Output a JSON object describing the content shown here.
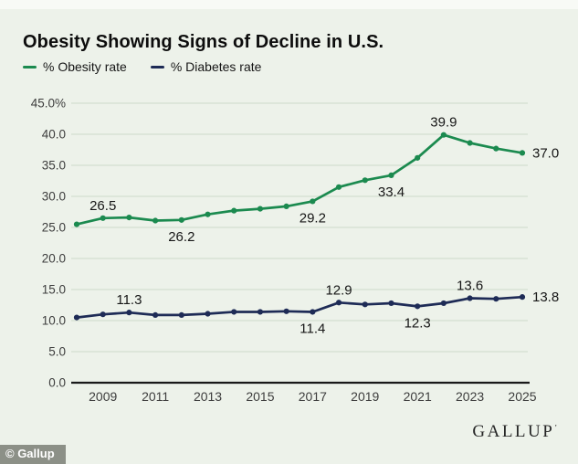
{
  "header": {
    "title": "Obesity Showing Signs of Decline in U.S."
  },
  "legend": [
    {
      "label": "% Obesity rate",
      "color": "#1b8a4f"
    },
    {
      "label": "% Diabetes rate",
      "color": "#1e2b56"
    }
  ],
  "chart_data": {
    "type": "line",
    "x": [
      2008,
      2009,
      2010,
      2011,
      2012,
      2013,
      2014,
      2015,
      2016,
      2017,
      2018,
      2019,
      2020,
      2021,
      2022,
      2023,
      2024,
      2025
    ],
    "x_tick_labels": [
      "2009",
      "2011",
      "2013",
      "2015",
      "2017",
      "2019",
      "2021",
      "2023",
      "2025"
    ],
    "ylim": [
      0,
      45
    ],
    "grid": true,
    "legend_position": "top-left",
    "y_ticks": [
      {
        "value": 45,
        "label": "45.0%"
      },
      {
        "value": 40,
        "label": "40.0"
      },
      {
        "value": 35,
        "label": "35.0"
      },
      {
        "value": 30,
        "label": "30.0"
      },
      {
        "value": 25,
        "label": "25.0"
      },
      {
        "value": 20,
        "label": "20.0"
      },
      {
        "value": 15,
        "label": "15.0"
      },
      {
        "value": 10,
        "label": "10.0"
      },
      {
        "value": 5,
        "label": "5.0"
      },
      {
        "value": 0,
        "label": "0.0"
      }
    ],
    "series": [
      {
        "name": "% Obesity rate",
        "color": "#1b8a4f",
        "values": [
          25.5,
          26.5,
          26.6,
          26.1,
          26.2,
          27.1,
          27.7,
          28.0,
          28.4,
          29.2,
          31.5,
          32.6,
          33.4,
          36.2,
          39.9,
          38.6,
          37.7,
          37.0
        ],
        "point_labels": [
          {
            "x": 2009,
            "text": "26.5",
            "pos": "above"
          },
          {
            "x": 2012,
            "text": "26.2",
            "pos": "below"
          },
          {
            "x": 2017,
            "text": "29.2",
            "pos": "below"
          },
          {
            "x": 2020,
            "text": "33.4",
            "pos": "below"
          },
          {
            "x": 2022,
            "text": "39.9",
            "pos": "above"
          },
          {
            "x": 2025,
            "text": "37.0",
            "pos": "right"
          }
        ]
      },
      {
        "name": "% Diabetes rate",
        "color": "#1e2b56",
        "values": [
          10.5,
          11.0,
          11.3,
          10.9,
          10.9,
          11.1,
          11.4,
          11.4,
          11.5,
          11.4,
          12.9,
          12.6,
          12.8,
          12.3,
          12.8,
          13.6,
          13.5,
          13.8
        ],
        "point_labels": [
          {
            "x": 2010,
            "text": "11.3",
            "pos": "above"
          },
          {
            "x": 2017,
            "text": "11.4",
            "pos": "below"
          },
          {
            "x": 2018,
            "text": "12.9",
            "pos": "above"
          },
          {
            "x": 2021,
            "text": "12.3",
            "pos": "below"
          },
          {
            "x": 2023,
            "text": "13.6",
            "pos": "above"
          },
          {
            "x": 2025,
            "text": "13.8",
            "pos": "right"
          }
        ]
      }
    ],
    "colors": {
      "background": "#edf2ea",
      "gridline": "#d8e1d4",
      "axis": "#1a1a1a",
      "tick_text": "#3d3d3d",
      "data_label_text": "#161616"
    }
  },
  "footer": {
    "copyright": "© Gallup",
    "brand": "GALLUP",
    "brand_mark": "ʼ"
  }
}
